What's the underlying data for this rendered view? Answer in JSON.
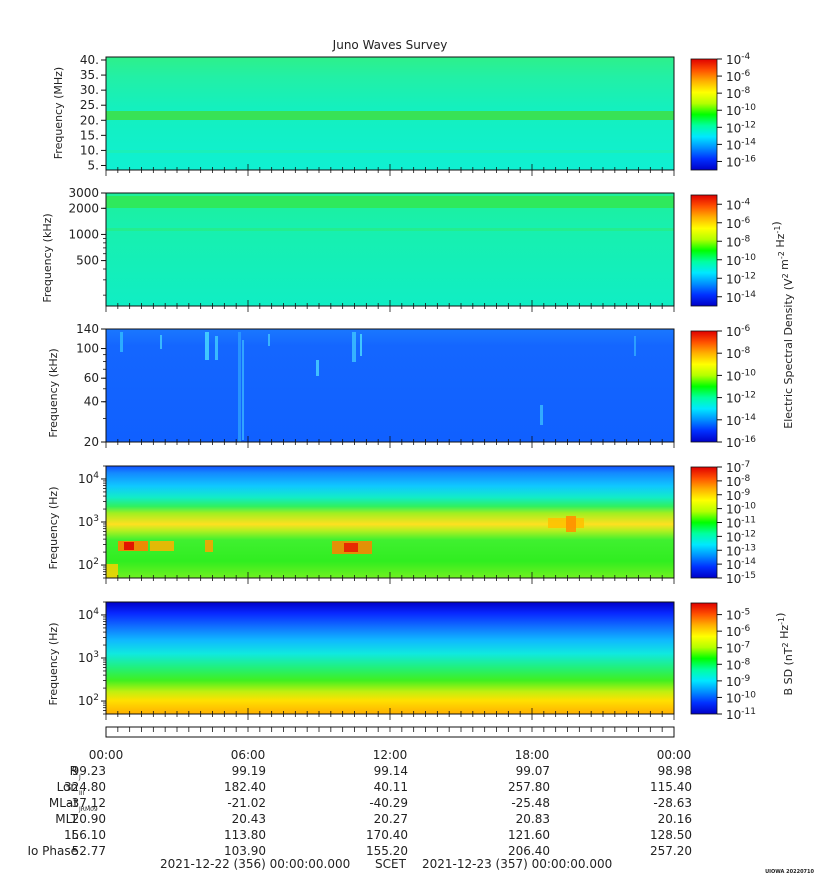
{
  "title": "Juno Waves Survey",
  "credit": "UIOWA 20220710",
  "colors": {
    "colormap": [
      "#0000c8",
      "#0030ff",
      "#0090ff",
      "#00e8ff",
      "#00ffa0",
      "#00ff00",
      "#b4ff00",
      "#ffff00",
      "#ffb000",
      "#ff5000",
      "#e00000"
    ],
    "grid_line": "#111111"
  },
  "chart_data": [
    {
      "type": "heatmap",
      "ylabel": "Frequency (MHz)",
      "yscale": "linear",
      "ylim": [
        3.5,
        41
      ],
      "yticks": [
        {
          "value": 40,
          "label": "40."
        },
        {
          "value": 35,
          "label": "35."
        },
        {
          "value": 30,
          "label": "30."
        },
        {
          "value": 25,
          "label": "25."
        },
        {
          "value": 20,
          "label": "20."
        },
        {
          "value": 15,
          "label": "15."
        },
        {
          "value": 10,
          "label": "10."
        },
        {
          "value": 5,
          "label": "5."
        }
      ],
      "colorbar": {
        "range_exp": [
          -17,
          -4
        ],
        "ticks": [
          {
            "exp": -4,
            "label": "-4"
          },
          {
            "exp": -6,
            "label": "-6"
          },
          {
            "exp": -8,
            "label": "-8"
          },
          {
            "exp": -10,
            "label": "-10"
          },
          {
            "exp": -12,
            "label": "-12"
          },
          {
            "exp": -14,
            "label": "-14"
          },
          {
            "exp": -16,
            "label": "-16"
          }
        ]
      }
    },
    {
      "type": "heatmap",
      "ylabel": "Frequency (kHz)",
      "yscale": "log",
      "ylim": [
        150,
        3000
      ],
      "yticks": [
        {
          "value": 3000,
          "label": "3000"
        },
        {
          "value": 2000,
          "label": "2000"
        },
        {
          "value": 1000,
          "label": "1000"
        },
        {
          "value": 500,
          "label": "500"
        }
      ],
      "colorbar": {
        "range_exp": [
          -15,
          -3
        ],
        "ticks": [
          {
            "exp": -4,
            "label": "-4"
          },
          {
            "exp": -6,
            "label": "-6"
          },
          {
            "exp": -8,
            "label": "-8"
          },
          {
            "exp": -10,
            "label": "-10"
          },
          {
            "exp": -12,
            "label": "-12"
          },
          {
            "exp": -14,
            "label": "-14"
          }
        ]
      }
    },
    {
      "type": "heatmap",
      "ylabel": "Frequency (kHz)",
      "yscale": "log",
      "ylim": [
        20,
        140
      ],
      "yticks": [
        {
          "value": 140,
          "label": "140"
        },
        {
          "value": 100,
          "label": "100"
        },
        {
          "value": 60,
          "label": "60"
        },
        {
          "value": 40,
          "label": "40"
        },
        {
          "value": 20,
          "label": "20"
        }
      ],
      "colorbar": {
        "range_exp": [
          -16,
          -6
        ],
        "ticks": [
          {
            "exp": -6,
            "label": "-6"
          },
          {
            "exp": -8,
            "label": "-8"
          },
          {
            "exp": -10,
            "label": "-10"
          },
          {
            "exp": -12,
            "label": "-12"
          },
          {
            "exp": -14,
            "label": "-14"
          },
          {
            "exp": -16,
            "label": "-16"
          }
        ]
      }
    },
    {
      "type": "heatmap",
      "ylabel": "Frequency (Hz)",
      "yscale": "log",
      "ylim": [
        50,
        20000
      ],
      "yticks": [
        {
          "value": 10000,
          "label": "10",
          "sup": "4"
        },
        {
          "value": 1000,
          "label": "10",
          "sup": "3"
        },
        {
          "value": 100,
          "label": "10",
          "sup": "2"
        }
      ],
      "colorbar": {
        "range_exp": [
          -15,
          -7
        ],
        "ticks": [
          {
            "exp": -7,
            "label": "-7"
          },
          {
            "exp": -8,
            "label": "-8"
          },
          {
            "exp": -9,
            "label": "-9"
          },
          {
            "exp": -10,
            "label": "-10"
          },
          {
            "exp": -11,
            "label": "-11"
          },
          {
            "exp": -12,
            "label": "-12"
          },
          {
            "exp": -13,
            "label": "-13"
          },
          {
            "exp": -14,
            "label": "-14"
          },
          {
            "exp": -15,
            "label": "-15"
          }
        ]
      }
    },
    {
      "type": "heatmap",
      "ylabel": "Frequency (Hz)",
      "yscale": "log",
      "ylim": [
        50,
        20000
      ],
      "yticks": [
        {
          "value": 10000,
          "label": "10",
          "sup": "4"
        },
        {
          "value": 1000,
          "label": "10",
          "sup": "3"
        },
        {
          "value": 100,
          "label": "10",
          "sup": "2"
        }
      ],
      "colorbar": {
        "range_exp": [
          -11,
          -4.3
        ],
        "ticks": [
          {
            "exp": -5,
            "label": "-5"
          },
          {
            "exp": -6,
            "label": "-6"
          },
          {
            "exp": -7,
            "label": "-7"
          },
          {
            "exp": -8,
            "label": "-8"
          },
          {
            "exp": -9,
            "label": "-9"
          },
          {
            "exp": -10,
            "label": "-10"
          },
          {
            "exp": -11,
            "label": "-11"
          }
        ]
      }
    }
  ],
  "colorbar_titles": {
    "electric": "Electric Spectral Density (V<sup>2</sup> m<sup>-2</sup> Hz<sup>-1</sup>)",
    "magnetic": "B SD (nT<sup>2</sup> Hz<sup>-1</sup>)"
  },
  "time_axis": {
    "labels": [
      "00:00",
      "06:00",
      "12:00",
      "18:00",
      "00:00"
    ]
  },
  "ephemeris": [
    {
      "label": "R",
      "sub": "J",
      "values": [
        "99.23",
        "99.19",
        "99.14",
        "99.07",
        "98.98"
      ]
    },
    {
      "label": "Lon",
      "sub": "III",
      "values": [
        "324.80",
        "182.40",
        "40.11",
        "257.80",
        "115.40"
      ]
    },
    {
      "label": "MLat",
      "sub": "JRM09",
      "values": [
        "-37.12",
        "-21.02",
        "-40.29",
        "-25.48",
        "-28.63"
      ]
    },
    {
      "label": "MLT",
      "sub": "",
      "values": [
        "20.90",
        "20.43",
        "20.27",
        "20.83",
        "20.16"
      ]
    },
    {
      "label": "L",
      "sub": "",
      "values": [
        "156.10",
        "113.80",
        "170.40",
        "121.60",
        "128.50"
      ]
    },
    {
      "label": "Io Phase",
      "sub": "",
      "values": [
        "52.77",
        "103.90",
        "155.20",
        "206.40",
        "257.20"
      ]
    }
  ],
  "footer": {
    "start": "2021-12-22 (356) 00:00:00.000",
    "scet": "SCET",
    "end": "2021-12-23 (357) 00:00:00.000"
  }
}
